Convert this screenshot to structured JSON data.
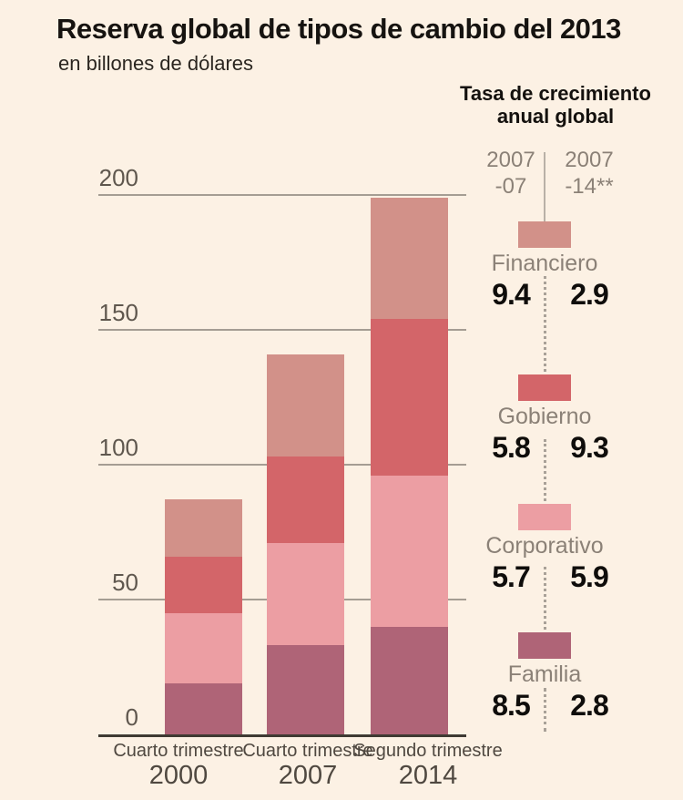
{
  "title": "Reserva global de tipos de cambio del 2013",
  "subtitle": "en billones de dólares",
  "growth_header": {
    "line1": "Tasa de crecimiento",
    "line2": "anual global",
    "col1_line1": "2007",
    "col1_line2": "-07",
    "col2_line1": "2007",
    "col2_line2": "-14**"
  },
  "legend": {
    "items": [
      {
        "label": "Financiero",
        "color": "#d29189",
        "values": [
          "9.4",
          "2.9"
        ]
      },
      {
        "label": "Gobierno",
        "color": "#d36569",
        "values": [
          "5.8",
          "9.3"
        ]
      },
      {
        "label": "Corporativo",
        "color": "#ec9ea3",
        "values": [
          "5.7",
          "5.9"
        ]
      },
      {
        "label": "Familia",
        "color": "#af6477",
        "values": [
          "8.5",
          "2.8"
        ]
      }
    ]
  },
  "chart_data": {
    "type": "bar",
    "stacked": true,
    "title": "Reserva global de tipos de cambio del 2013",
    "unit": "billones de dólares",
    "categories": [
      "Cuarto trimestre 2000",
      "Cuarto trimestre 2007",
      "Segundo trimestre 2014"
    ],
    "category_labels": [
      {
        "line1": "Cuarto trimestre",
        "line2": "2000"
      },
      {
        "line1": "Cuarto trimestre",
        "line2": "2007"
      },
      {
        "line1": "Segundo trimestre",
        "line2": "2014"
      }
    ],
    "stack_order": "bottom-to-top",
    "series": [
      {
        "name": "Familia",
        "color": "#af6477",
        "values": [
          19,
          33,
          40
        ]
      },
      {
        "name": "Corporativo",
        "color": "#ec9ea3",
        "values": [
          26,
          38,
          56
        ]
      },
      {
        "name": "Gobierno",
        "color": "#d36569",
        "values": [
          21,
          32,
          58
        ]
      },
      {
        "name": "Financiero",
        "color": "#d29189",
        "values": [
          21,
          38,
          45
        ]
      }
    ],
    "totals": [
      87,
      141,
      199
    ],
    "yticks": [
      0,
      50,
      100,
      150,
      200
    ],
    "ylim": [
      0,
      210
    ],
    "grid": true,
    "legend_position": "right",
    "growth_rates": {
      "columns": [
        "2007 -07",
        "2007 -14**"
      ],
      "Financiero": [
        9.4,
        2.9
      ],
      "Gobierno": [
        5.8,
        9.3
      ],
      "Corporativo": [
        5.7,
        5.9
      ],
      "Familia": [
        8.5,
        2.8
      ]
    }
  },
  "colors": {
    "background": "#fcf1e4",
    "gridline": "#a59d93",
    "axis_line": "#3f3a33",
    "tick_text": "#5f574e",
    "gray_text": "#8b8177",
    "black_text": "#14110e"
  }
}
